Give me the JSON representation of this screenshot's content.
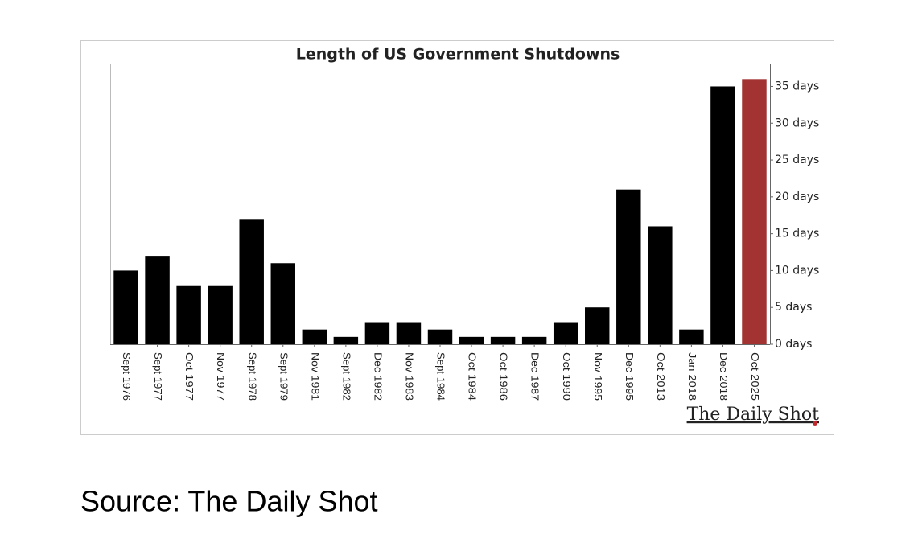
{
  "chart_data": {
    "type": "bar",
    "title": "Length of US Government Shutdowns",
    "categories": [
      "Sept 1976",
      "Sept 1977",
      "Oct 1977",
      "Nov 1977",
      "Sept 1978",
      "Sept 1979",
      "Nov 1981",
      "Sept 1982",
      "Dec 1982",
      "Nov 1983",
      "Sept 1984",
      "Oct 1984",
      "Oct 1986",
      "Dec 1987",
      "Oct 1990",
      "Nov 1995",
      "Dec 1995",
      "Oct 2013",
      "Jan 2018",
      "Dec 2018",
      "Oct 2025"
    ],
    "values": [
      10,
      12,
      8,
      8,
      17,
      11,
      2,
      1,
      3,
      3,
      2,
      1,
      1,
      1,
      3,
      5,
      21,
      16,
      2,
      35,
      36
    ],
    "colors": [
      "#000000",
      "#000000",
      "#000000",
      "#000000",
      "#000000",
      "#000000",
      "#000000",
      "#000000",
      "#000000",
      "#000000",
      "#000000",
      "#000000",
      "#000000",
      "#000000",
      "#000000",
      "#000000",
      "#000000",
      "#000000",
      "#000000",
      "#000000",
      "#a33232"
    ],
    "ylim": [
      0,
      38
    ],
    "yticks": [
      {
        "value": 0,
        "label": "0 days"
      },
      {
        "value": 5,
        "label": "5 days"
      },
      {
        "value": 10,
        "label": "10 days"
      },
      {
        "value": 15,
        "label": "15 days"
      },
      {
        "value": 20,
        "label": "20 days"
      },
      {
        "value": 25,
        "label": "25 days"
      },
      {
        "value": 30,
        "label": "30 days"
      },
      {
        "value": 35,
        "label": "35 days"
      }
    ],
    "y_axis_side": "right",
    "logo": "The Daily Shot"
  },
  "source": "Source: The Daily Shot"
}
